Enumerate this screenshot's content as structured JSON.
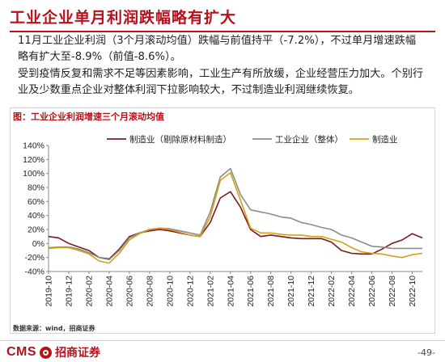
{
  "page": {
    "title": "工业企业单月利润跌幅略有扩大",
    "paragraph1": "11月工业企业利润（3个月滚动均值）跌幅与前值持平（-7.2%），不过单月增速跌幅略有扩大至-8.9%（前值-8.6%）。",
    "paragraph2": "受到疫情反复和需求不足等因素影响，工业生产有所放缓，企业经营压力加大。个别行业及少数重点企业对整体利润下拉影响较大，不过制造业利润继续恢复。",
    "figure_caption": "图：工业企业利润增速三个月滚动均值",
    "source": "数据来源：wind，招商证券",
    "logo_text": "CMS",
    "logo_cn": "招商证券",
    "page_number": "-49-"
  },
  "chart_data": {
    "type": "line",
    "x": [
      "2019-10",
      "2019-11",
      "2019-12",
      "2020-01",
      "2020-02",
      "2020-03",
      "2020-04",
      "2020-05",
      "2020-06",
      "2020-07",
      "2020-08",
      "2020-09",
      "2020-10",
      "2020-11",
      "2020-12",
      "2021-01",
      "2021-02",
      "2021-03",
      "2021-04",
      "2021-05",
      "2021-06",
      "2021-07",
      "2021-08",
      "2021-09",
      "2021-10",
      "2021-11",
      "2021-12",
      "2022-01",
      "2022-02",
      "2022-03",
      "2022-04",
      "2022-05",
      "2022-06",
      "2022-07",
      "2022-08",
      "2022-09",
      "2022-10",
      "2022-11"
    ],
    "tick_labels": [
      "2019-10",
      "2019-12",
      "2020-02",
      "2020-04",
      "2020-06",
      "2020-08",
      "2020-10",
      "2020-12",
      "2021-02",
      "2021-04",
      "2021-06",
      "2021-08",
      "2021-10",
      "2021-12",
      "2022-02",
      "2022-04",
      "2022-06",
      "2022-08",
      "2022-10"
    ],
    "ylim": [
      -40,
      140
    ],
    "yticks": [
      -40,
      -20,
      0,
      20,
      40,
      60,
      80,
      100,
      120,
      140
    ],
    "grid": false,
    "legend_position": "top",
    "series": [
      {
        "name": "制造业（剔除原材料制造）",
        "color": "#7b1a1a",
        "values": [
          10,
          8,
          0,
          -5,
          -10,
          -20,
          -22,
          -8,
          10,
          15,
          18,
          20,
          18,
          15,
          12,
          10,
          30,
          65,
          74,
          52,
          20,
          10,
          12,
          10,
          8,
          7,
          7,
          7,
          2,
          -10,
          -14,
          -15,
          -15,
          -8,
          0,
          5,
          14,
          8
        ]
      },
      {
        "name": "工业企业（整体）",
        "color": "#8c8c8c",
        "values": [
          -6,
          -5,
          -5,
          -8,
          -13,
          -20,
          -23,
          -10,
          8,
          15,
          20,
          22,
          21,
          18,
          15,
          12,
          45,
          95,
          107,
          70,
          48,
          45,
          42,
          38,
          36,
          30,
          27,
          23,
          20,
          12,
          8,
          2,
          -4,
          -5,
          -7,
          -7,
          -7,
          -7
        ]
      },
      {
        "name": "制造业",
        "color": "#d4a017",
        "values": [
          -7,
          -6,
          -6,
          -10,
          -15,
          -25,
          -28,
          -14,
          5,
          14,
          20,
          22,
          20,
          16,
          12,
          10,
          38,
          90,
          101,
          62,
          22,
          15,
          15,
          13,
          12,
          12,
          10,
          10,
          6,
          2,
          -6,
          -12,
          -14,
          -15,
          -18,
          -20,
          -16,
          -14
        ]
      }
    ]
  }
}
